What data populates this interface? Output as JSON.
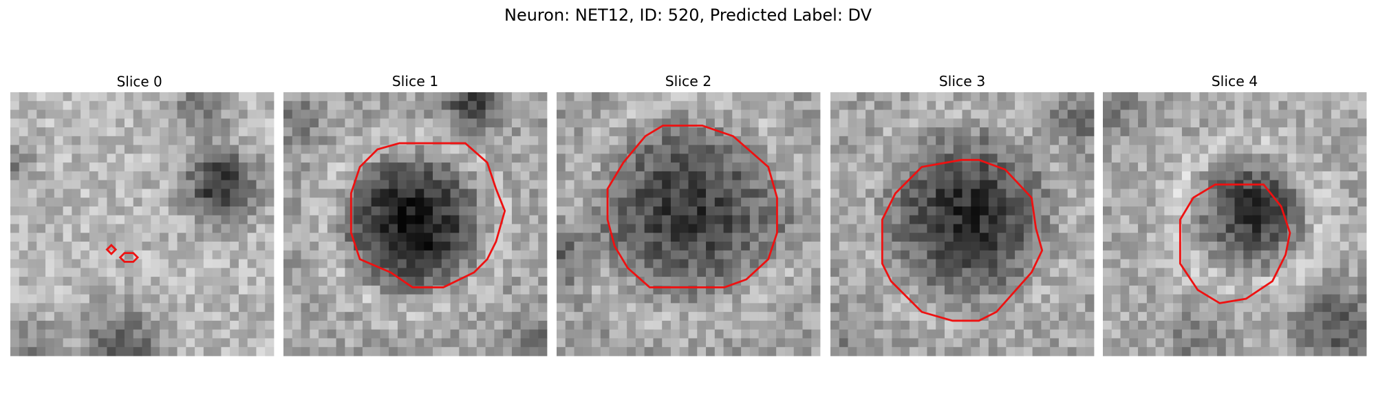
{
  "header": {
    "title": "Neuron: NET12, ID: 520, Predicted Label: DV"
  },
  "panels": [
    {
      "title": "Slice 0"
    },
    {
      "title": "Slice 1"
    },
    {
      "title": "Slice 2"
    },
    {
      "title": "Slice 3"
    },
    {
      "title": "Slice 4"
    }
  ]
}
